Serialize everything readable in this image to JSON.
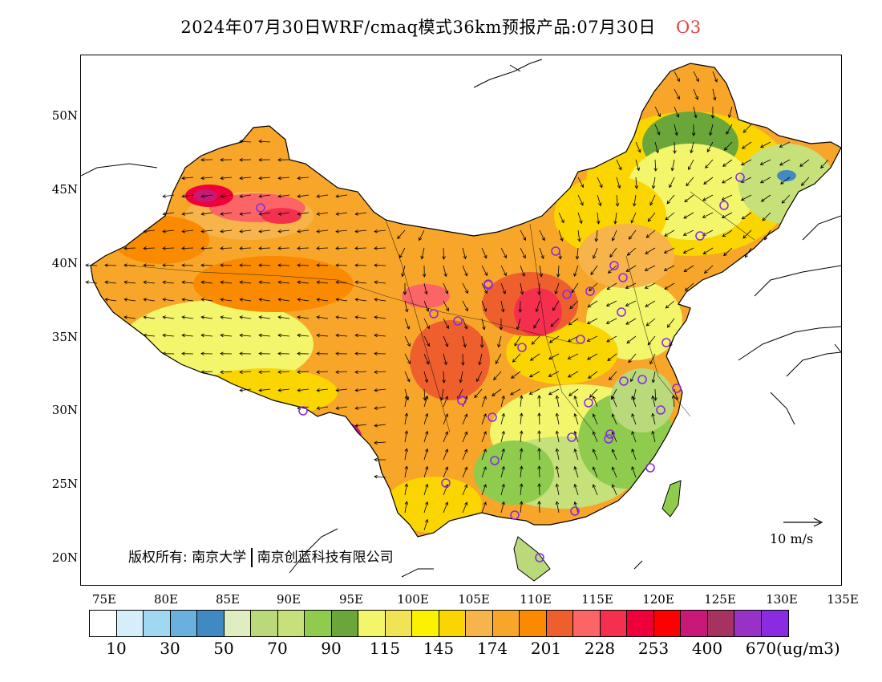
{
  "title": {
    "main": "2024年07月30日WRF/cmaq模式36km预报产品:07月30日",
    "species": "O3"
  },
  "axes": {
    "lat_labels": [
      "50N",
      "45N",
      "40N",
      "35N",
      "30N",
      "25N",
      "20N"
    ],
    "lon_labels": [
      "75E",
      "80E",
      "85E",
      "90E",
      "95E",
      "100E",
      "105E",
      "110E",
      "115E",
      "120E",
      "125E",
      "130E",
      "135E"
    ]
  },
  "copyright": {
    "prefix": "版权所有: 南京大学",
    "suffix": "南京创蓝科技有限公司"
  },
  "wind_scale_label": "10 m/s",
  "colorbar": {
    "colors": [
      "#ffffff",
      "#d6eef9",
      "#a0d8f2",
      "#6ab0df",
      "#4189c2",
      "#dfedc0",
      "#b9d97b",
      "#c6e07a",
      "#8fcc4e",
      "#6aa63a",
      "#f3f56b",
      "#f0e455",
      "#fbf200",
      "#fad500",
      "#f7b44a",
      "#f8a62a",
      "#fa8a00",
      "#ef5f2e",
      "#fc6566",
      "#f5304f",
      "#f0003a",
      "#ff0000",
      "#c81878",
      "#a73261",
      "#9931c6",
      "#8a2be2"
    ],
    "labels": [
      "10",
      "30",
      "50",
      "70",
      "90",
      "115",
      "145",
      "174",
      "201",
      "228",
      "253",
      "400",
      "670"
    ],
    "unit": "(ug/m3)"
  }
}
